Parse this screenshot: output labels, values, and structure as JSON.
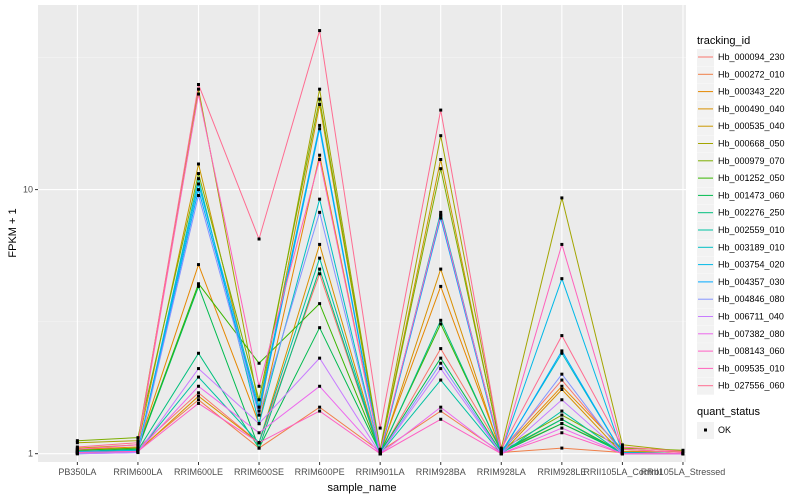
{
  "chart_data": {
    "type": "line",
    "xlabel": "sample_name",
    "ylabel": "FPKM + 1",
    "y_scale": "log10",
    "ylim": [
      0.93,
      50
    ],
    "y_ticks": [
      1,
      10
    ],
    "y_tick_labels": [
      "1",
      "10"
    ],
    "categories": [
      "PB350LA",
      "RRIM600LA",
      "RRIM600LE",
      "RRIM600SE",
      "RRIM600PE",
      "RRIM901LA",
      "RRIM928BA",
      "RRIM928LA",
      "RRIM928LE",
      "RRII105LA_Control",
      "RRII105LA_Stressed"
    ],
    "legend_title": "tracking_id",
    "legend_position": "right",
    "shape_legend_title": "quant_status",
    "shape_legend_entries": [
      "OK"
    ],
    "grid": true,
    "series": [
      {
        "name": "Hb_000094_230",
        "color": "#F8766D",
        "values": [
          1.03,
          1.05,
          1.7,
          1.1,
          4.8,
          1.0,
          2.5,
          1.03,
          1.9,
          1.02,
          1.0
        ]
      },
      {
        "name": "Hb_000272_010",
        "color": "#F07F49",
        "values": [
          1.02,
          1.03,
          1.6,
          1.05,
          1.5,
          1.02,
          1.45,
          1.01,
          1.05,
          1.01,
          1.0
        ]
      },
      {
        "name": "Hb_000343_220",
        "color": "#E58700",
        "values": [
          1.04,
          1.06,
          5.2,
          1.3,
          13.5,
          1.02,
          4.3,
          1.02,
          1.8,
          1.04,
          1.01
        ]
      },
      {
        "name": "Hb_000490_040",
        "color": "#D89000",
        "values": [
          1.01,
          1.02,
          1.65,
          1.1,
          6.2,
          1.0,
          5.0,
          1.0,
          1.75,
          1.0,
          1.0
        ]
      },
      {
        "name": "Hb_000535_040",
        "color": "#C99800",
        "values": [
          1.05,
          1.08,
          12.5,
          1.4,
          21.0,
          1.03,
          13.0,
          1.02,
          1.3,
          1.02,
          1.02
        ]
      },
      {
        "name": "Hb_000668_050",
        "color": "#A3A500",
        "values": [
          1.1,
          1.12,
          24.0,
          1.5,
          24.0,
          1.04,
          16.0,
          1.05,
          9.3,
          1.08,
          1.02
        ]
      },
      {
        "name": "Hb_000979_070",
        "color": "#7CAE00",
        "values": [
          1.12,
          1.15,
          11.5,
          1.6,
          22.0,
          1.03,
          12.0,
          1.04,
          1.4,
          1.05,
          1.03
        ]
      },
      {
        "name": "Hb_001252_050",
        "color": "#39B600",
        "values": [
          1.03,
          1.05,
          4.4,
          2.2,
          3.7,
          1.01,
          3.1,
          1.02,
          1.35,
          1.01,
          1.0
        ]
      },
      {
        "name": "Hb_001473_060",
        "color": "#00BB4E",
        "values": [
          1.02,
          1.04,
          4.3,
          1.05,
          3.0,
          1.01,
          2.3,
          1.01,
          1.3,
          1.01,
          1.0
        ]
      },
      {
        "name": "Hb_002276_250",
        "color": "#00BF7D",
        "values": [
          1.01,
          1.03,
          2.4,
          1.05,
          5.0,
          1.0,
          3.2,
          1.01,
          1.35,
          1.0,
          1.0
        ]
      },
      {
        "name": "Hb_002559_010",
        "color": "#00C1A3",
        "values": [
          1.0,
          1.02,
          1.95,
          1.1,
          5.5,
          1.0,
          1.9,
          1.0,
          1.45,
          1.0,
          1.0
        ]
      },
      {
        "name": "Hb_003189_010",
        "color": "#00BFC4",
        "values": [
          1.01,
          1.02,
          11.0,
          1.3,
          9.2,
          1.0,
          8.2,
          1.01,
          2.4,
          1.0,
          1.0
        ]
      },
      {
        "name": "Hb_003754_020",
        "color": "#00B8E7",
        "values": [
          1.02,
          1.03,
          10.5,
          1.5,
          17.5,
          1.01,
          8.0,
          1.02,
          4.6,
          1.01,
          1.0
        ]
      },
      {
        "name": "Hb_004357_030",
        "color": "#00A9FF",
        "values": [
          1.01,
          1.02,
          10.0,
          1.45,
          17.0,
          1.0,
          7.8,
          1.0,
          2.45,
          1.0,
          1.0
        ]
      },
      {
        "name": "Hb_004846_080",
        "color": "#8494FF",
        "values": [
          1.0,
          1.01,
          9.5,
          1.4,
          8.2,
          1.0,
          2.2,
          1.0,
          2.0,
          1.0,
          1.0
        ]
      },
      {
        "name": "Hb_006711_040",
        "color": "#C77CFF",
        "values": [
          1.0,
          1.01,
          2.1,
          1.3,
          2.3,
          1.0,
          2.1,
          1.0,
          1.6,
          1.0,
          1.0
        ]
      },
      {
        "name": "Hb_007382_080",
        "color": "#ED68ED",
        "values": [
          1.01,
          1.02,
          1.8,
          1.2,
          1.8,
          1.0,
          1.5,
          1.0,
          1.25,
          1.0,
          1.0
        ]
      },
      {
        "name": "Hb_008143_060",
        "color": "#FF61C3",
        "values": [
          1.01,
          1.02,
          1.55,
          1.1,
          1.45,
          1.0,
          1.35,
          1.0,
          1.2,
          1.0,
          1.0
        ]
      },
      {
        "name": "Hb_009535_010",
        "color": "#FF62BC",
        "values": [
          1.04,
          1.08,
          23.0,
          1.8,
          13.0,
          1.02,
          8.0,
          1.02,
          6.2,
          1.04,
          1.01
        ]
      },
      {
        "name": "Hb_027556_060",
        "color": "#FF6C91",
        "values": [
          1.06,
          1.1,
          25.0,
          6.5,
          40.0,
          1.25,
          20.0,
          1.04,
          2.8,
          1.06,
          1.02
        ]
      }
    ]
  }
}
